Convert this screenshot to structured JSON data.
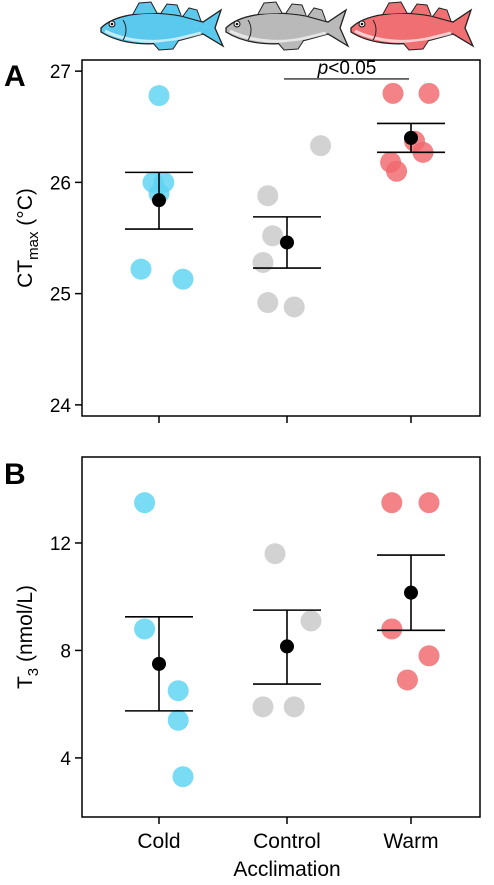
{
  "fish_icons": [
    {
      "name": "cold-fish-icon",
      "color": "#5bc8ee"
    },
    {
      "name": "control-fish-icon",
      "color": "#b9b9b9"
    },
    {
      "name": "warm-fish-icon",
      "color": "#ef6f73"
    }
  ],
  "x_axis": {
    "label": "Acclimation",
    "categories": [
      "Cold",
      "Control",
      "Warm"
    ]
  },
  "group_colors": {
    "Cold": "#5dd3f3",
    "Control": "#c8c8c8",
    "Warm": "#f0686c"
  },
  "mean_color": "#000000",
  "chart_data": [
    {
      "type": "scatter",
      "panel": "A",
      "ylabel_main": "CT",
      "ylabel_sub": "max",
      "ylabel_unit": " (°C)",
      "ylim": [
        23.9,
        27.1
      ],
      "yticks": [
        24,
        25,
        26,
        27
      ],
      "categories": [
        "Cold",
        "Control",
        "Warm"
      ],
      "points": [
        [
          26.78,
          26.0,
          26.0,
          25.9,
          25.22,
          25.13
        ],
        [
          26.33,
          25.88,
          25.52,
          25.28,
          24.92,
          24.88
        ],
        [
          26.8,
          26.8,
          26.37,
          26.27,
          26.18,
          26.1
        ]
      ],
      "jitter": [
        [
          0.0,
          -0.05,
          0.04,
          0.0,
          -0.15,
          0.2
        ],
        [
          0.28,
          -0.16,
          -0.12,
          -0.2,
          -0.16,
          0.06
        ],
        [
          -0.15,
          0.15,
          0.03,
          0.1,
          -0.17,
          -0.12
        ]
      ],
      "mean": [
        25.84,
        25.46,
        26.4
      ],
      "error_upper": [
        26.09,
        25.69,
        26.53
      ],
      "error_lower": [
        25.58,
        25.23,
        26.27
      ],
      "annotation": {
        "italic": "p",
        "rest": "<0.05",
        "between": [
          "Control",
          "Warm"
        ],
        "y": 26.93
      }
    },
    {
      "type": "scatter",
      "panel": "B",
      "ylabel_main": "T",
      "ylabel_sub": "3",
      "ylabel_unit": " (nmol/L)",
      "ylim": [
        1.8,
        15.2
      ],
      "yticks": [
        4,
        8,
        12
      ],
      "categories": [
        "Cold",
        "Control",
        "Warm"
      ],
      "points": [
        [
          13.5,
          8.8,
          6.5,
          5.4,
          3.3
        ],
        [
          11.6,
          9.1,
          5.9,
          5.9
        ],
        [
          13.5,
          13.5,
          8.8,
          7.8,
          6.9
        ]
      ],
      "jitter": [
        [
          -0.12,
          -0.12,
          0.16,
          0.16,
          0.2
        ],
        [
          -0.1,
          0.2,
          -0.2,
          0.06
        ],
        [
          -0.16,
          0.15,
          -0.16,
          0.15,
          -0.03
        ]
      ],
      "mean": [
        7.5,
        8.15,
        10.15
      ],
      "error_upper": [
        9.25,
        9.5,
        11.55
      ],
      "error_lower": [
        5.75,
        6.75,
        8.75
      ],
      "annotation": null
    }
  ]
}
